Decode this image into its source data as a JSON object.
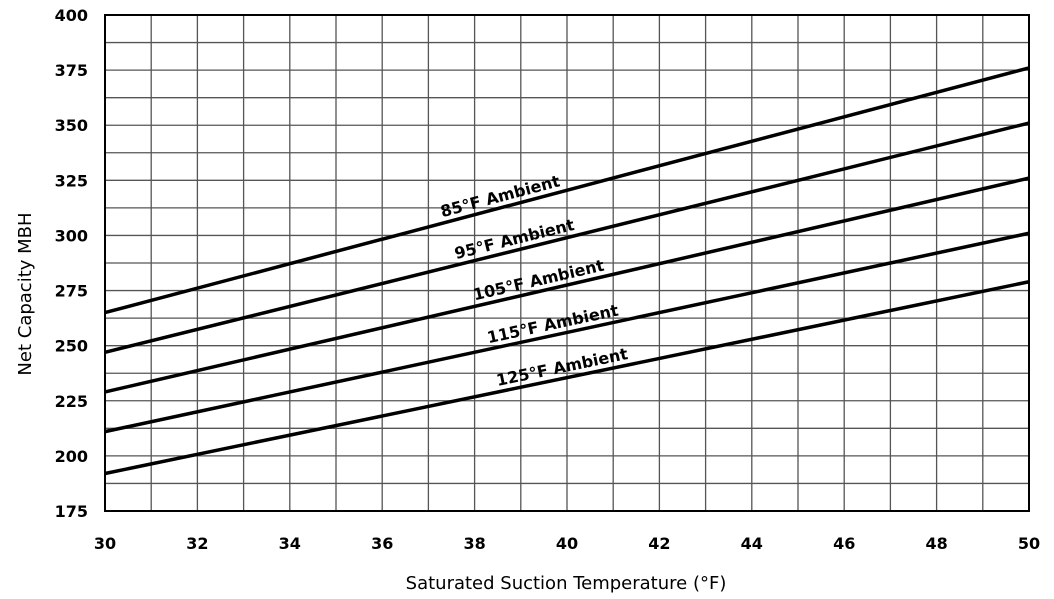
{
  "chart_data": {
    "type": "line",
    "xlabel": "Saturated Suction Temperature (°F)",
    "ylabel": "Net Capacity MBH",
    "xlim": [
      30,
      50
    ],
    "ylim": [
      175,
      400
    ],
    "x_ticks": [
      "30",
      "32",
      "34",
      "36",
      "38",
      "40",
      "42",
      "44",
      "46",
      "48",
      "50"
    ],
    "y_ticks": [
      "175",
      "200",
      "225",
      "250",
      "275",
      "300",
      "325",
      "350",
      "375",
      "400"
    ],
    "grid": true,
    "x_minor_step": 1,
    "series": [
      {
        "name": "85°F Ambient",
        "x": [
          30,
          50
        ],
        "values": [
          265,
          376
        ]
      },
      {
        "name": "95°F Ambient",
        "x": [
          30,
          50
        ],
        "values": [
          247,
          351
        ]
      },
      {
        "name": "105°F Ambient",
        "x": [
          30,
          50
        ],
        "values": [
          229,
          326
        ]
      },
      {
        "name": "115°F Ambient",
        "x": [
          30,
          50
        ],
        "values": [
          211,
          301
        ]
      },
      {
        "name": "125°F Ambient",
        "x": [
          30,
          50
        ],
        "values": [
          192,
          279
        ]
      }
    ],
    "line_color": "#000000"
  }
}
